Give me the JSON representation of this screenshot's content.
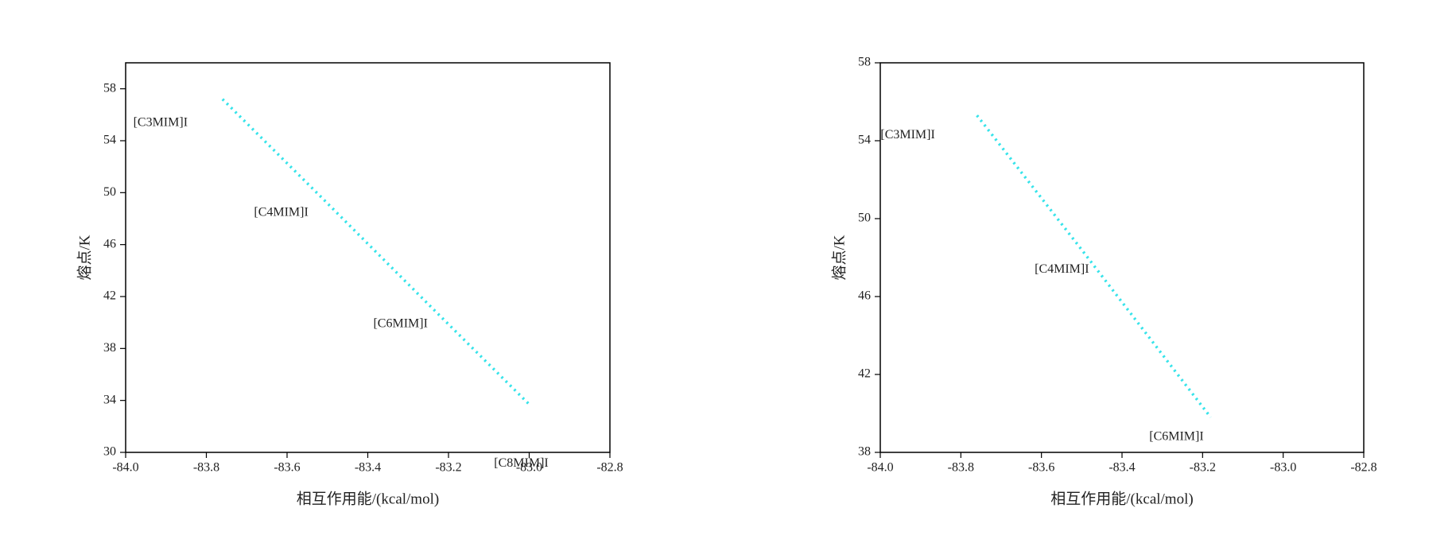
{
  "chart_data": [
    {
      "type": "line",
      "x_label": "相互作用能/(kcal/mol)",
      "y_label": "熔点/K",
      "x": [
        -83.76,
        -83.52,
        -83.24,
        -83.0
      ],
      "series": [
        {
          "color": "#36e3ea",
          "values": [
            57.2,
            49.8,
            41.1,
            33.7
          ]
        }
      ],
      "annotations": [
        "[C3MIM]I",
        "[C4MIM]I",
        "[C6MIM]I",
        "[C8MIM]I"
      ],
      "xlim": [
        -84,
        -82.8
      ],
      "xticks": [
        {
          "value": -84,
          "label": "-84.0"
        },
        {
          "value": -83.8,
          "label": "-83.8"
        },
        {
          "value": -83.6,
          "label": "-83.6"
        },
        {
          "value": -83.4,
          "label": "-83.4"
        },
        {
          "value": -83.2,
          "label": "-83.2"
        },
        {
          "value": -83,
          "label": "-83.0"
        },
        {
          "value": -82.8,
          "label": "-82.8"
        }
      ],
      "ylim": [
        30,
        60
      ],
      "yticks": [
        30,
        34,
        38,
        42,
        46,
        50,
        54,
        58
      ]
    },
    {
      "type": "line",
      "x_label": "相互作用能/(kcal/mol)",
      "y_label": "熔点/K",
      "x": [
        -83.76,
        -83.5,
        -83.18
      ],
      "series": [
        {
          "color": "#36e3ea",
          "values": [
            55.3,
            48.4,
            39.8
          ]
        }
      ],
      "annotations": [
        "[C3MIM]I",
        "[C4MIM]I",
        "[C6MIM]I"
      ],
      "xlim": [
        -84,
        -82.8
      ],
      "xticks": [
        {
          "value": -84,
          "label": "-84.0"
        },
        {
          "value": -83.8,
          "label": "-83.8"
        },
        {
          "value": -83.6,
          "label": "-83.6"
        },
        {
          "value": -83.4,
          "label": "-83.4"
        },
        {
          "value": -83.2,
          "label": "-83.2"
        },
        {
          "value": -83,
          "label": "-83.0"
        },
        {
          "value": -82.8,
          "label": "-82.8"
        }
      ],
      "ylim": [
        38,
        58
      ],
      "yticks": [
        38,
        42,
        46,
        50,
        54,
        58
      ]
    }
  ]
}
